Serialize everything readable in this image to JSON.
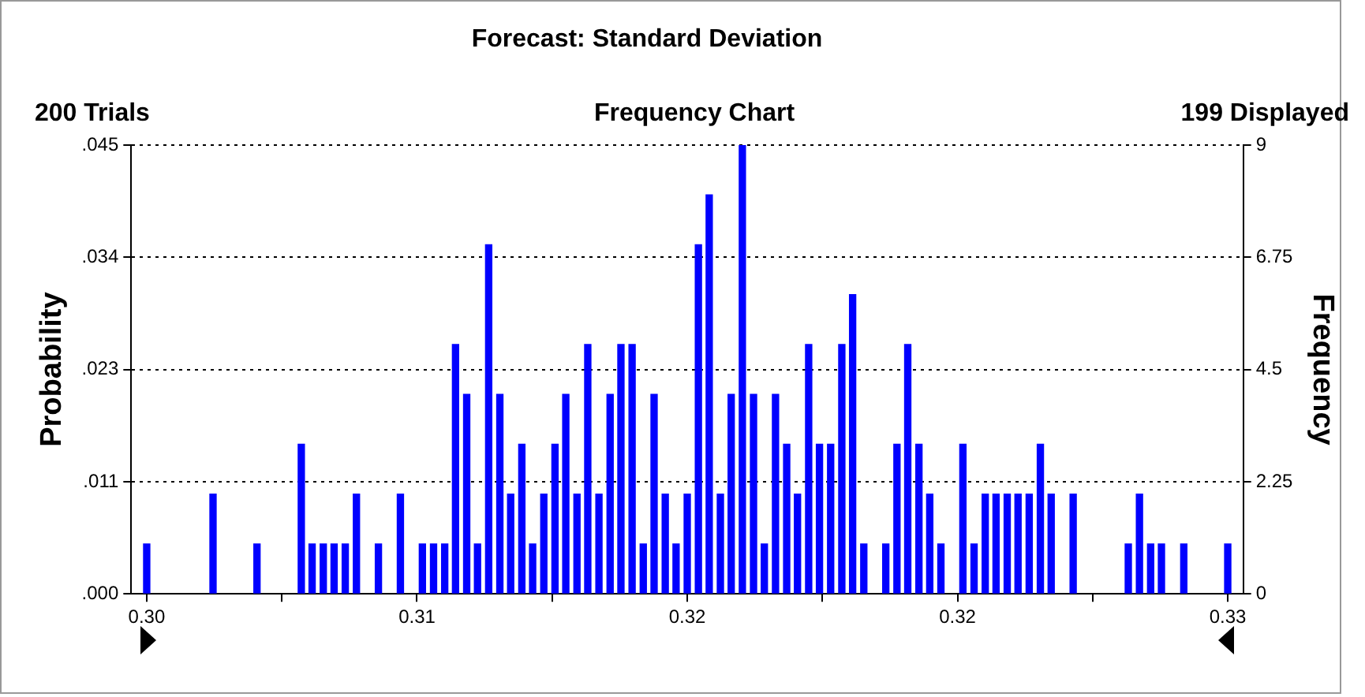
{
  "chart_data": {
    "type": "bar",
    "title": "Forecast: Standard Deviation",
    "subtitle": "Frequency Chart",
    "annotations": [
      "200 Trials",
      "199 Displayed"
    ],
    "ylabel": "Probability",
    "y2label": "Frequency",
    "x": [
      0.3,
      0.30184,
      0.30306,
      0.30429,
      0.30459,
      0.3049,
      0.3052,
      0.30551,
      0.30582,
      0.30643,
      0.30704,
      0.30765,
      0.30796,
      0.30827,
      0.30857,
      0.30888,
      0.30918,
      0.30949,
      0.3098,
      0.3101,
      0.31041,
      0.31071,
      0.31102,
      0.31133,
      0.31163,
      0.31194,
      0.31224,
      0.31255,
      0.31286,
      0.31316,
      0.31347,
      0.31378,
      0.31408,
      0.31439,
      0.31469,
      0.315,
      0.31531,
      0.31561,
      0.31592,
      0.31622,
      0.31653,
      0.31684,
      0.31714,
      0.31745,
      0.31776,
      0.31806,
      0.31837,
      0.31867,
      0.31898,
      0.31929,
      0.31959,
      0.3199,
      0.32051,
      0.32082,
      0.32112,
      0.32143,
      0.32173,
      0.32204,
      0.32265,
      0.32296,
      0.32327,
      0.32357,
      0.32388,
      0.32418,
      0.32449,
      0.3248,
      0.3251,
      0.32571,
      0.32724,
      0.32755,
      0.32786,
      0.32816,
      0.32878,
      0.33
    ],
    "series": [
      {
        "color": "#0000ff",
        "axis": "y2",
        "values": [
          1,
          2,
          1,
          3,
          1,
          1,
          1,
          1,
          2,
          1,
          2,
          1,
          1,
          1,
          5,
          4,
          1,
          7,
          4,
          2,
          3,
          1,
          2,
          3,
          4,
          2,
          5,
          2,
          4,
          5,
          5,
          1,
          4,
          2,
          1,
          2,
          7,
          8,
          2,
          4,
          9,
          4,
          1,
          4,
          3,
          2,
          5,
          3,
          3,
          5,
          6,
          1,
          1,
          3,
          5,
          3,
          2,
          1,
          3,
          1,
          2,
          2,
          2,
          2,
          2,
          3,
          2,
          2,
          1,
          2,
          1,
          1,
          1,
          1
        ]
      }
    ],
    "xlim": [
      0.29957,
      0.33043
    ],
    "xticks": [
      {
        "value": 0.3,
        "label": "0.30"
      },
      {
        "value": 0.30375,
        "label": null
      },
      {
        "value": 0.3075,
        "label": "0.31"
      },
      {
        "value": 0.31125,
        "label": null
      },
      {
        "value": 0.315,
        "label": "0.32"
      },
      {
        "value": 0.31875,
        "label": null
      },
      {
        "value": 0.3225,
        "label": "0.32"
      },
      {
        "value": 0.32625,
        "label": null
      },
      {
        "value": 0.33,
        "label": "0.33"
      }
    ],
    "ylim": [
      0,
      0.045
    ],
    "yticks": [
      {
        "value": 0,
        "label": ".000"
      },
      {
        "value": 0.01125,
        "label": ".011"
      },
      {
        "value": 0.0225,
        "label": ".023"
      },
      {
        "value": 0.03375,
        "label": ".034"
      },
      {
        "value": 0.045,
        "label": ".045"
      }
    ],
    "y2lim": [
      0,
      9
    ],
    "y2ticks": [
      0,
      2.25,
      4.5,
      6.75,
      9
    ],
    "grid": "y",
    "legend": false
  }
}
